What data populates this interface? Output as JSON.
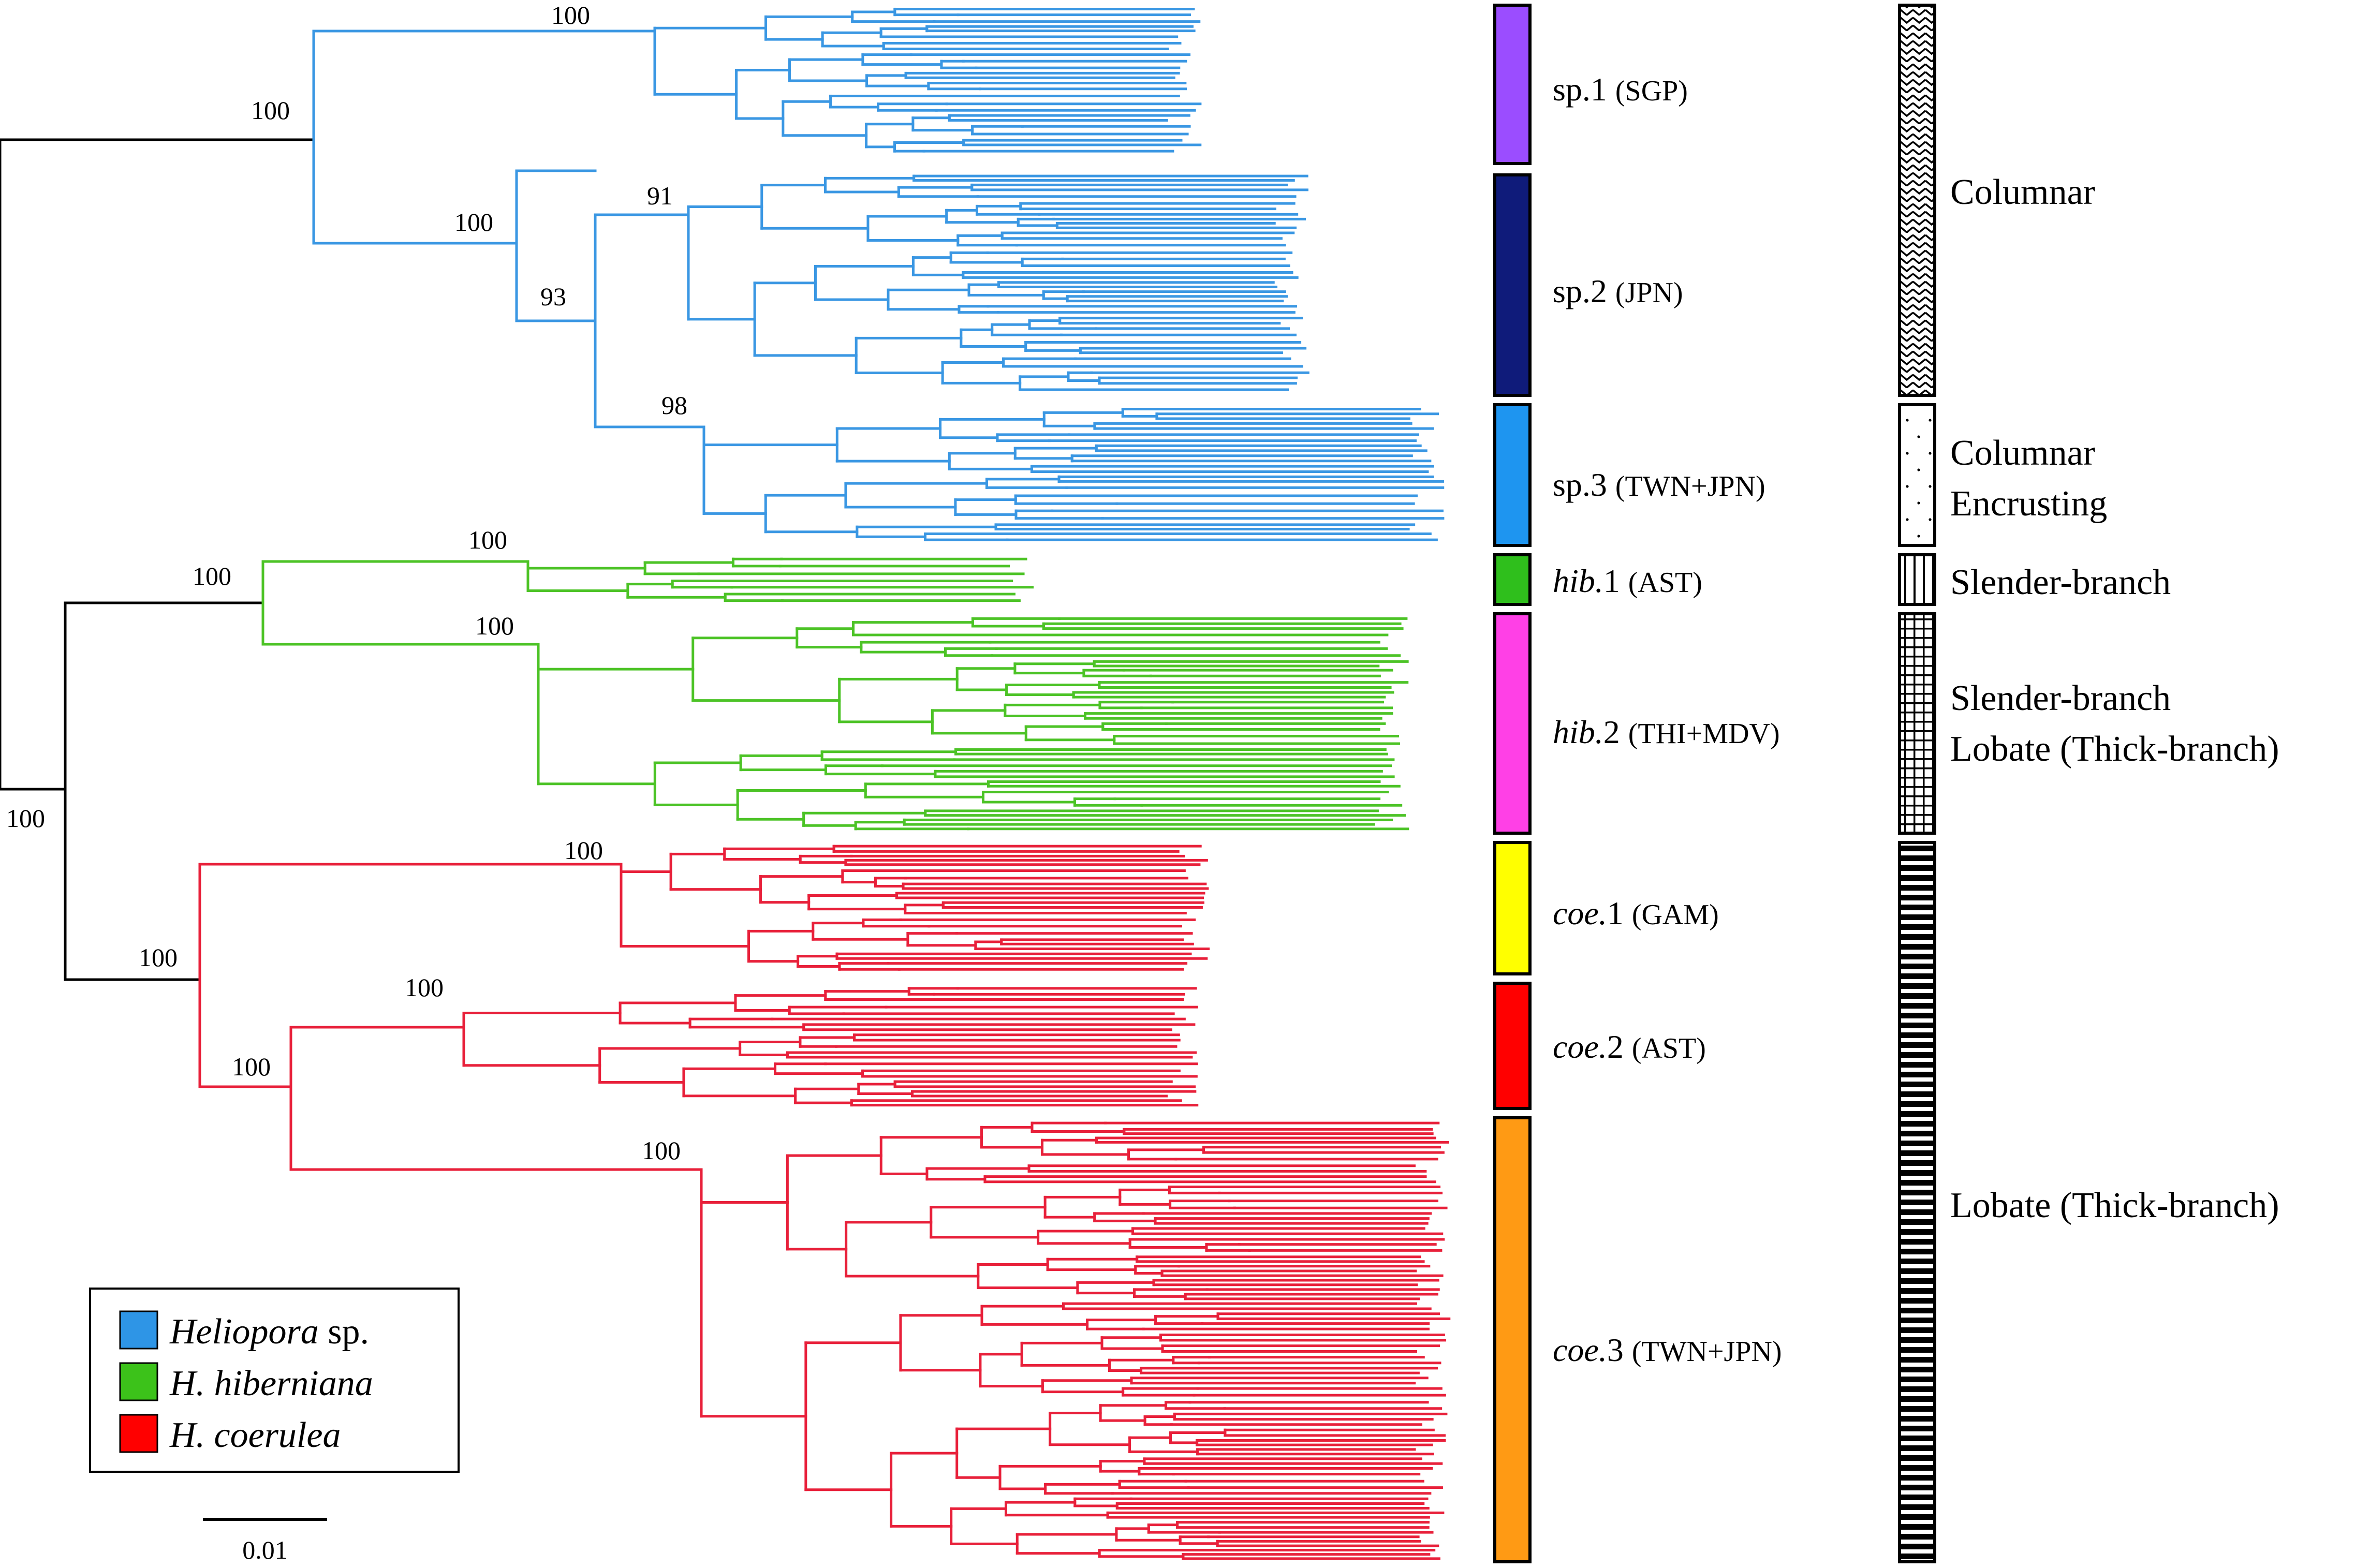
{
  "legend": {
    "items": [
      {
        "name_italic": "Heliopora",
        "name_plain": " sp.",
        "color": "#2e95e6"
      },
      {
        "name_italic": "H. hiberniana",
        "name_plain": "",
        "color": "#3cc21a"
      },
      {
        "name_italic": "H. coerulea",
        "name_plain": "",
        "color": "#ff0000"
      }
    ]
  },
  "scale_bar": {
    "label": "0.01"
  },
  "branch_colors": {
    "backbone": "#000000",
    "heliopora": "#3a97e3",
    "hiberniana": "#4cc326",
    "coerulea": "#e8203a"
  },
  "bootstrap": {
    "root": "100",
    "heliopora_sp": "100",
    "sp1": "100",
    "sp2_sp3": "100",
    "sp2sp3_inner": "93",
    "sp2": "91",
    "sp3": "98",
    "hiberniana": "100",
    "hib1": "100",
    "hib2": "100",
    "coerulea": "100",
    "coe1": "100",
    "coe2_coe3": "100",
    "coe2": "100",
    "coe3": "100"
  },
  "clades": [
    {
      "prefix": "sp.",
      "prefix_italic": false,
      "num": "1",
      "loc": "(SGP)",
      "color": "#9b4dff"
    },
    {
      "prefix": "sp.",
      "prefix_italic": false,
      "num": "2",
      "loc": "(JPN)",
      "color": "#0f1b7a"
    },
    {
      "prefix": "sp.",
      "prefix_italic": false,
      "num": "3",
      "loc": "(TWN+JPN)",
      "color": "#1e95f0"
    },
    {
      "prefix": "hib.",
      "prefix_italic": true,
      "num": "1",
      "loc": "(AST)",
      "color": "#2fbf1c"
    },
    {
      "prefix": "hib.",
      "prefix_italic": true,
      "num": "2",
      "loc": "(THI+MDV)",
      "color": "#ff40e6"
    },
    {
      "prefix": "coe.",
      "prefix_italic": true,
      "num": "1",
      "loc": "(GAM)",
      "color": "#ffff00"
    },
    {
      "prefix": "coe.",
      "prefix_italic": true,
      "num": "2",
      "loc": "(AST)",
      "color": "#ff0000"
    },
    {
      "prefix": "coe.",
      "prefix_italic": true,
      "num": "3",
      "loc": "(TWN+JPN)",
      "color": "#ff9a14"
    }
  ],
  "morphology": [
    {
      "lines": [
        "Columnar"
      ],
      "pattern": "zigzag"
    },
    {
      "lines": [
        "Columnar",
        "Encrusting"
      ],
      "pattern": "dots"
    },
    {
      "lines": [
        "Slender-branch"
      ],
      "pattern": "vertical-lines"
    },
    {
      "lines": [
        "Slender-branch",
        "Lobate (Thick-branch)"
      ],
      "pattern": "grid"
    },
    {
      "lines": [
        "Lobate (Thick-branch)"
      ],
      "pattern": "horizontal-lines"
    }
  ]
}
